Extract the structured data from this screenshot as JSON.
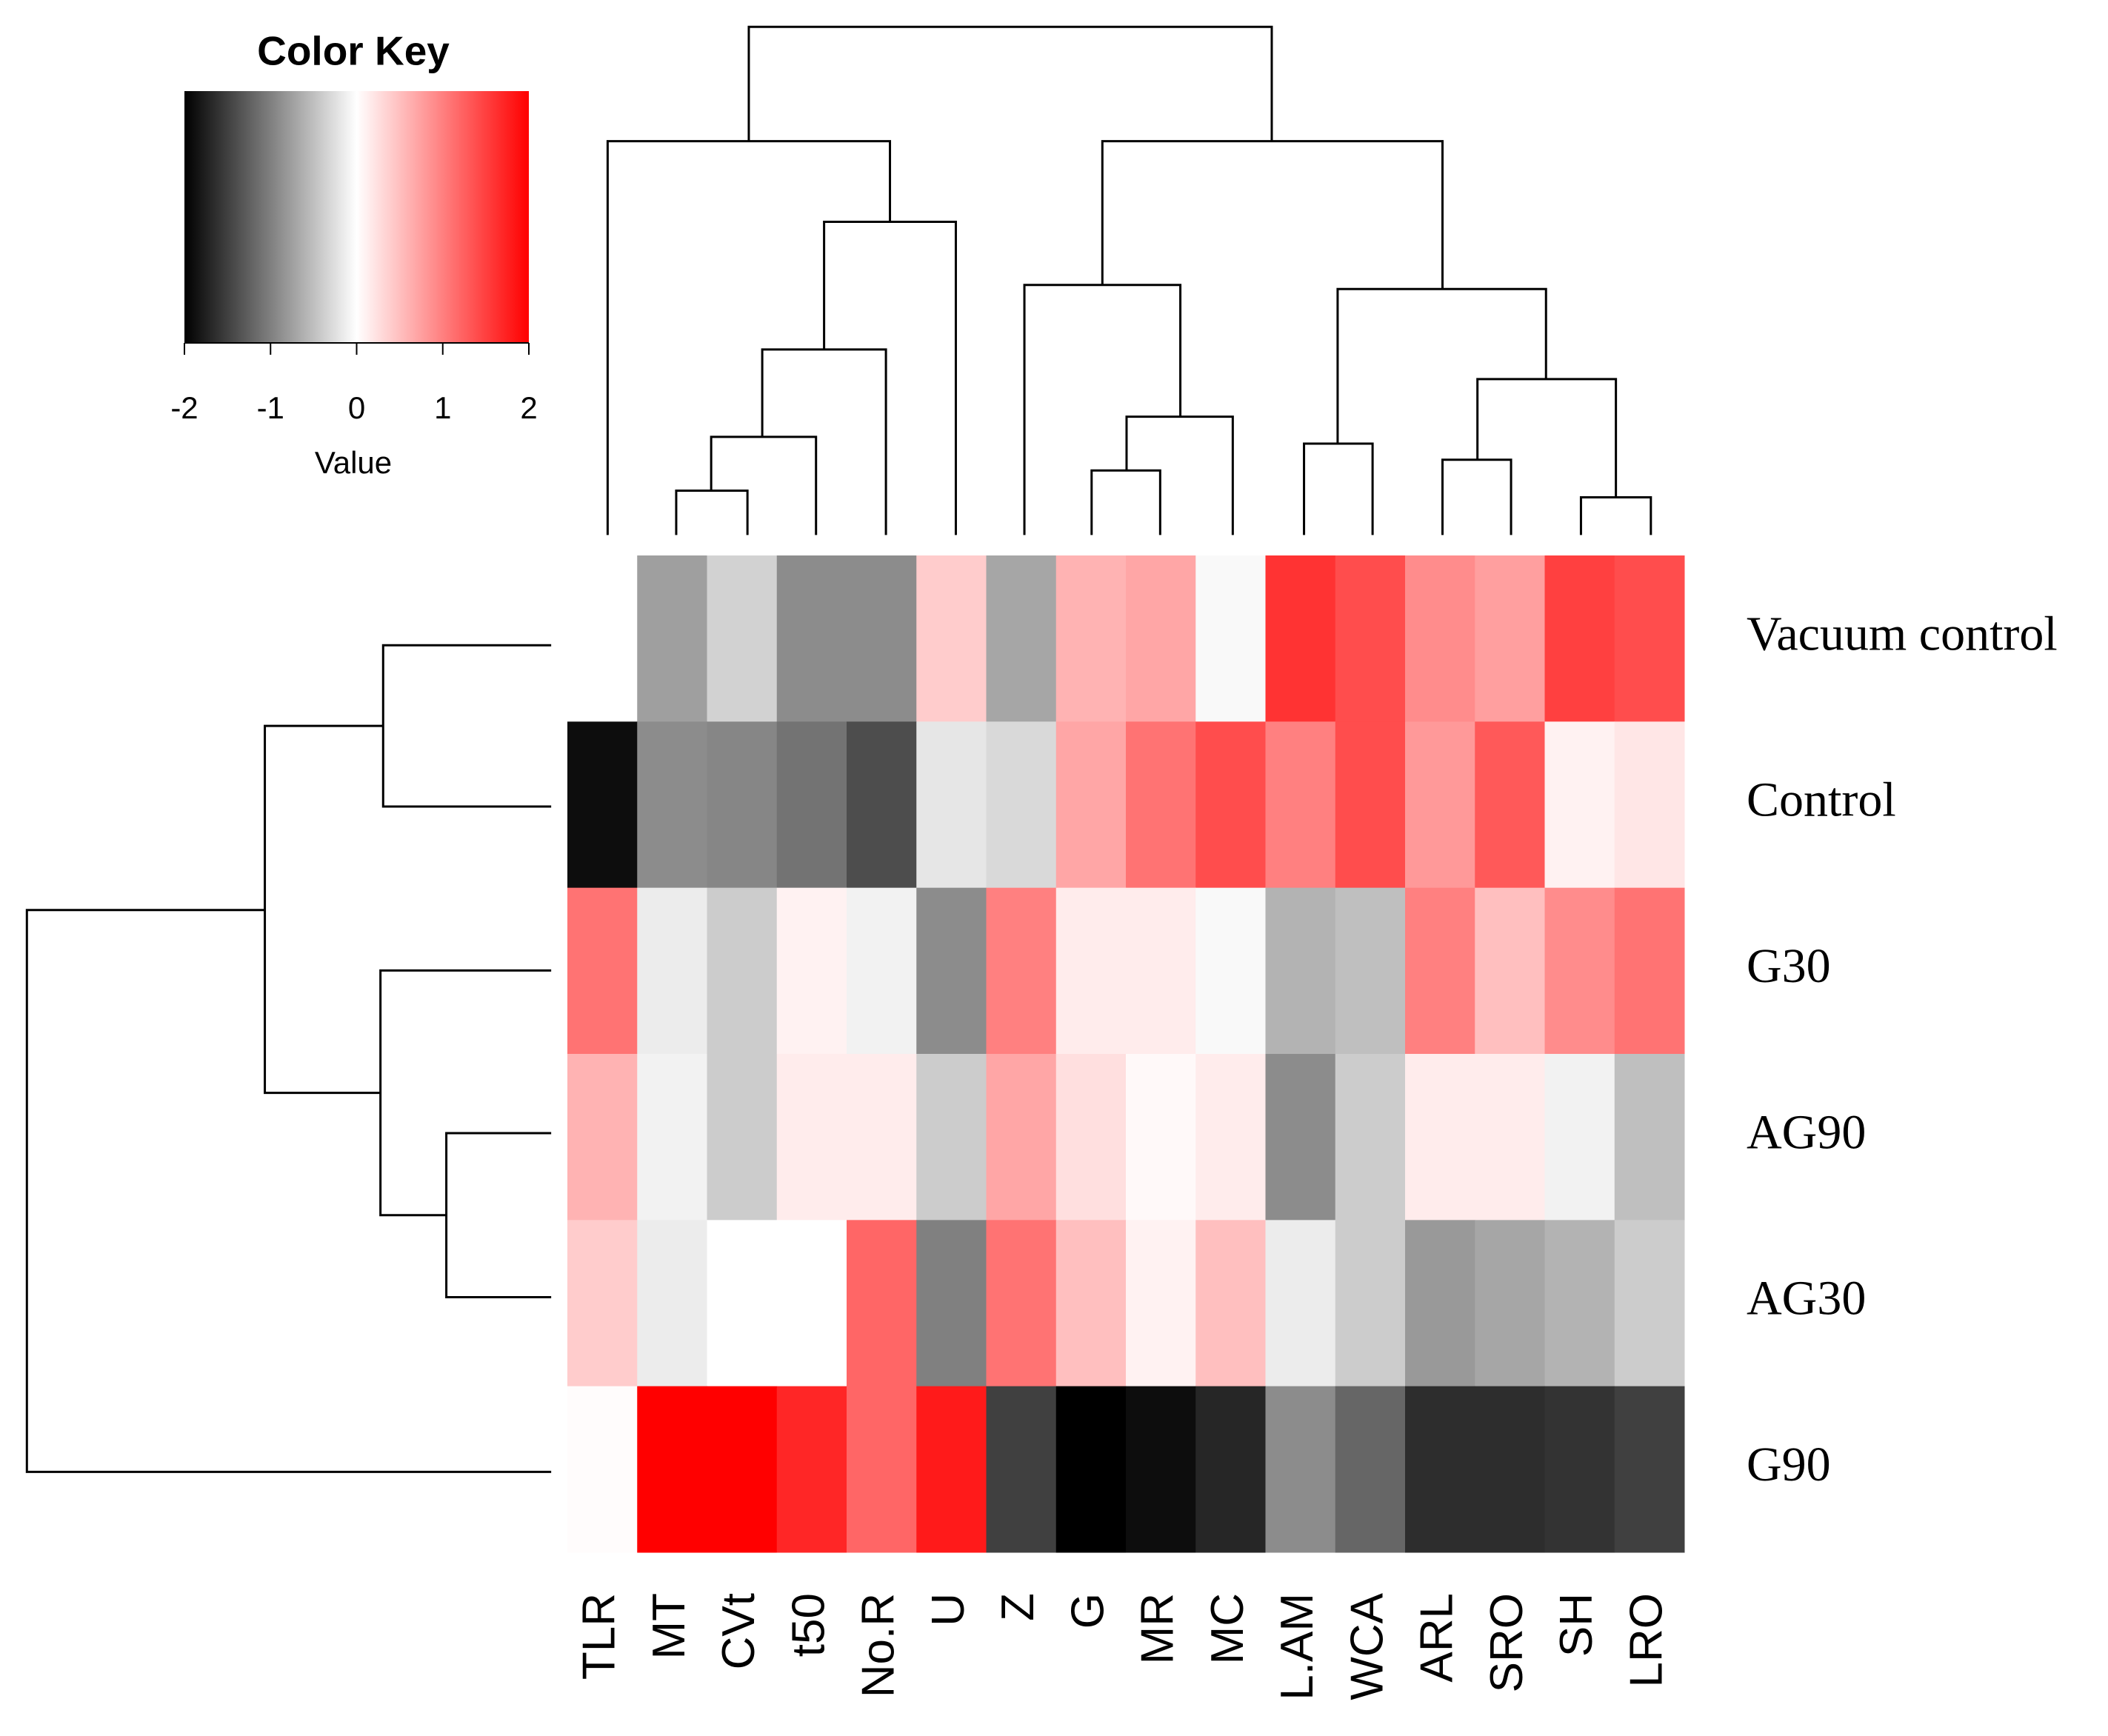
{
  "chart_data": {
    "type": "heatmap",
    "legend_title": "Color Key",
    "legend_label": "Value",
    "colors": [
      "#000000",
      "#ffffff",
      "#ff0000"
    ],
    "zlim": [
      -2,
      2
    ],
    "zticks": [
      -2,
      -1,
      0,
      1,
      2
    ],
    "columns": [
      "TLR",
      "MT",
      "CVt",
      "t50",
      "No.R",
      "U",
      "Z",
      "G",
      "MR",
      "MC",
      "L.AM",
      "WCA",
      "ARL",
      "SRO",
      "SH",
      "LRO"
    ],
    "rows": [
      "Vacuum control",
      "Control",
      "G30",
      "AG90",
      "AG30",
      "G90"
    ],
    "values": [
      [
        0,
        -0.75,
        -0.35,
        -0.9,
        -0.9,
        0.4,
        -0.7,
        0.6,
        0.7,
        -0.05,
        1.6,
        1.4,
        0.9,
        0.75,
        1.5,
        1.4
      ],
      [
        -1.9,
        -0.9,
        -0.95,
        -1.1,
        -1.4,
        -0.2,
        -0.3,
        0.7,
        1.1,
        1.4,
        1.0,
        1.4,
        0.8,
        1.3,
        0.1,
        0.2
      ],
      [
        1.1,
        -0.15,
        -0.4,
        0.1,
        -0.1,
        -0.9,
        1.0,
        0.15,
        0.15,
        -0.05,
        -0.6,
        -0.5,
        1.0,
        0.5,
        0.9,
        1.1
      ],
      [
        0.6,
        -0.1,
        -0.4,
        0.15,
        0.15,
        -0.4,
        0.7,
        0.25,
        0.05,
        0.15,
        -0.9,
        -0.4,
        0.15,
        0.15,
        -0.1,
        -0.5
      ],
      [
        0.4,
        -0.15,
        0,
        0,
        1.2,
        -1.0,
        1.1,
        0.5,
        0.1,
        0.5,
        -0.15,
        -0.4,
        -0.8,
        -0.7,
        -0.6,
        -0.4
      ],
      [
        0.02,
        2.0,
        2.0,
        1.7,
        1.2,
        1.8,
        -1.5,
        -2.0,
        -1.9,
        -1.7,
        -0.9,
        -1.2,
        -1.65,
        -1.65,
        -1.6,
        -1.5
      ]
    ]
  }
}
